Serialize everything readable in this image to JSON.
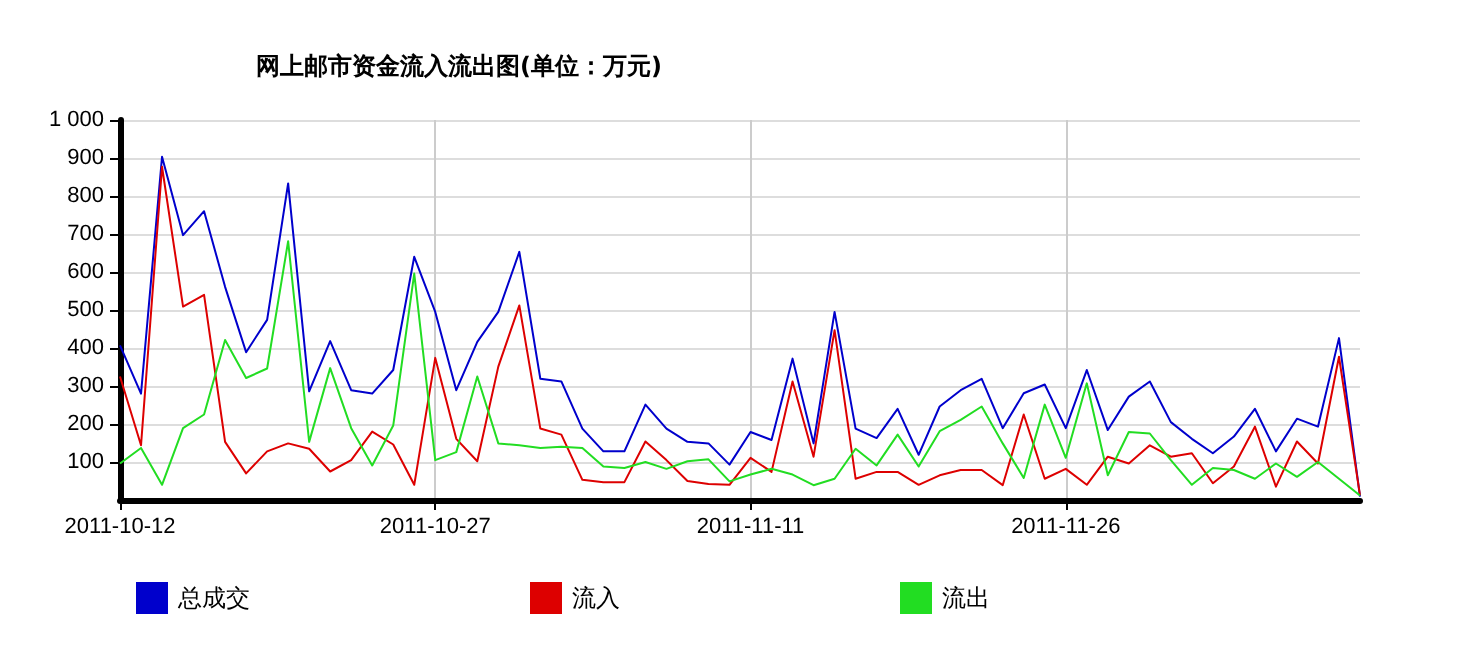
{
  "chart_data": {
    "type": "line",
    "title": "网上邮市资金流入流出图(单位：万元)",
    "categories": [
      "2011-10-12",
      null,
      null,
      null,
      null,
      null,
      null,
      null,
      null,
      null,
      null,
      null,
      null,
      null,
      null,
      "2011-10-27",
      null,
      null,
      null,
      null,
      null,
      null,
      null,
      null,
      null,
      null,
      null,
      null,
      null,
      null,
      "2011-11-11",
      null,
      null,
      null,
      null,
      null,
      null,
      null,
      null,
      null,
      null,
      null,
      null,
      null,
      null,
      "2011-11-26",
      null,
      null,
      null,
      null,
      null,
      null,
      null,
      null,
      null,
      null,
      null,
      null,
      null,
      null
    ],
    "series": [
      {
        "name": "总成交",
        "color": "#0000cc",
        "values": [
          407,
          280,
          903,
          697,
          760,
          561,
          389,
          474,
          833,
          286,
          418,
          289,
          280,
          342,
          640,
          495,
          289,
          416,
          495,
          653,
          319,
          312,
          188,
          128,
          128,
          251,
          188,
          153,
          149,
          93,
          179,
          158,
          372,
          149,
          495,
          188,
          163,
          240,
          119,
          246,
          289,
          319,
          189,
          281,
          304,
          189,
          342,
          184,
          272,
          312,
          205,
          161,
          123,
          167,
          240,
          128,
          214,
          193,
          426,
          9
        ]
      },
      {
        "name": "流入",
        "color": "#dd0000",
        "values": [
          325,
          144,
          877,
          509,
          540,
          153,
          70,
          128,
          149,
          135,
          75,
          105,
          180,
          146,
          40,
          374,
          161,
          102,
          351,
          512,
          188,
          172,
          53,
          47,
          47,
          154,
          105,
          50,
          42,
          40,
          111,
          74,
          312,
          114,
          447,
          56,
          74,
          74,
          40,
          65,
          79,
          79,
          39,
          225,
          56,
          82,
          40,
          114,
          96,
          144,
          114,
          123,
          44,
          88,
          193,
          35,
          154,
          96,
          377,
          12
        ]
      },
      {
        "name": "流出",
        "color": "#22dd22",
        "values": [
          96,
          137,
          40,
          189,
          225,
          421,
          321,
          346,
          681,
          153,
          347,
          189,
          91,
          196,
          596,
          105,
          126,
          325,
          149,
          144,
          137,
          140,
          137,
          88,
          84,
          100,
          82,
          102,
          107,
          49,
          67,
          82,
          67,
          39,
          56,
          135,
          91,
          172,
          88,
          181,
          211,
          246,
          149,
          58,
          251,
          111,
          307,
          65,
          179,
          175,
          105,
          40,
          84,
          79,
          56,
          96,
          61,
          100,
          56,
          12
        ]
      }
    ],
    "ylim": [
      0,
      1000
    ],
    "yticks": [
      100,
      200,
      300,
      400,
      500,
      600,
      700,
      800,
      900,
      {
        "value": 1000,
        "label": "1 000"
      }
    ],
    "grid": true,
    "legend": "bottom",
    "marker": "none",
    "line_style": "solid"
  }
}
